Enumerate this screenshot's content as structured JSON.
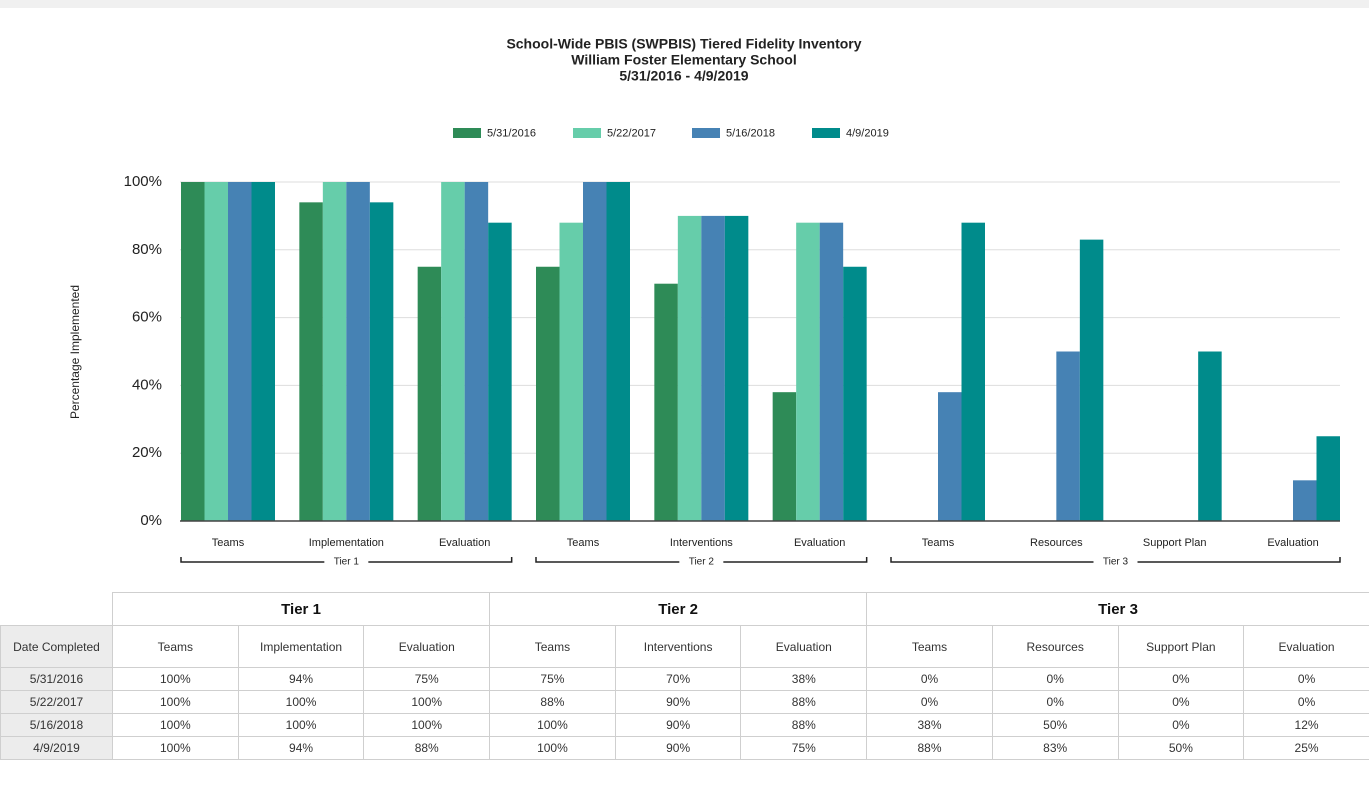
{
  "chart_data": {
    "type": "bar",
    "title": [
      "School-Wide PBIS (SWPBIS) Tiered Fidelity Inventory",
      "William Foster Elementary School",
      "5/31/2016 - 4/9/2019"
    ],
    "ylabel": "Percentage Implemented",
    "groups": [
      {
        "label": "Tier 1",
        "categories": [
          "Teams",
          "Implementation",
          "Evaluation"
        ]
      },
      {
        "label": "Tier 2",
        "categories": [
          "Teams",
          "Interventions",
          "Evaluation"
        ]
      },
      {
        "label": "Tier 3",
        "categories": [
          "Teams",
          "Resources",
          "Support Plan",
          "Evaluation"
        ]
      }
    ],
    "series": [
      {
        "name": "5/31/2016",
        "color": "#2e8b57",
        "values": [
          100,
          94,
          75,
          75,
          70,
          38,
          0,
          0,
          0,
          0
        ]
      },
      {
        "name": "5/22/2017",
        "color": "#66cdaa",
        "values": [
          100,
          100,
          100,
          88,
          90,
          88,
          0,
          0,
          0,
          0
        ]
      },
      {
        "name": "5/16/2018",
        "color": "#4682b4",
        "values": [
          100,
          100,
          100,
          100,
          90,
          88,
          38,
          50,
          0,
          12
        ]
      },
      {
        "name": "4/9/2019",
        "color": "#008b8b",
        "values": [
          100,
          94,
          88,
          100,
          90,
          75,
          88,
          83,
          50,
          25
        ]
      }
    ],
    "ylim": [
      0,
      100
    ],
    "yticks": [
      {
        "value": 0,
        "label": "0%"
      },
      {
        "value": 20,
        "label": "20%"
      },
      {
        "value": 40,
        "label": "40%"
      },
      {
        "value": 60,
        "label": "60%"
      },
      {
        "value": 80,
        "label": "80%"
      },
      {
        "value": 100,
        "label": "100%"
      }
    ],
    "grid": true,
    "legend": "top"
  },
  "table": {
    "group_headers": [
      "Tier 1",
      "Tier 2",
      "Tier 3"
    ],
    "columns": [
      "Date Completed",
      "Teams",
      "Implementation",
      "Evaluation",
      "Teams",
      "Interventions",
      "Evaluation",
      "Teams",
      "Resources",
      "Support Plan",
      "Evaluation"
    ],
    "rows": [
      [
        "5/31/2016",
        "100%",
        "94%",
        "75%",
        "75%",
        "70%",
        "38%",
        "0%",
        "0%",
        "0%",
        "0%"
      ],
      [
        "5/22/2017",
        "100%",
        "100%",
        "100%",
        "88%",
        "90%",
        "88%",
        "0%",
        "0%",
        "0%",
        "0%"
      ],
      [
        "5/16/2018",
        "100%",
        "100%",
        "100%",
        "100%",
        "90%",
        "88%",
        "38%",
        "50%",
        "0%",
        "12%"
      ],
      [
        "4/9/2019",
        "100%",
        "94%",
        "88%",
        "100%",
        "90%",
        "75%",
        "88%",
        "83%",
        "50%",
        "25%"
      ]
    ]
  }
}
